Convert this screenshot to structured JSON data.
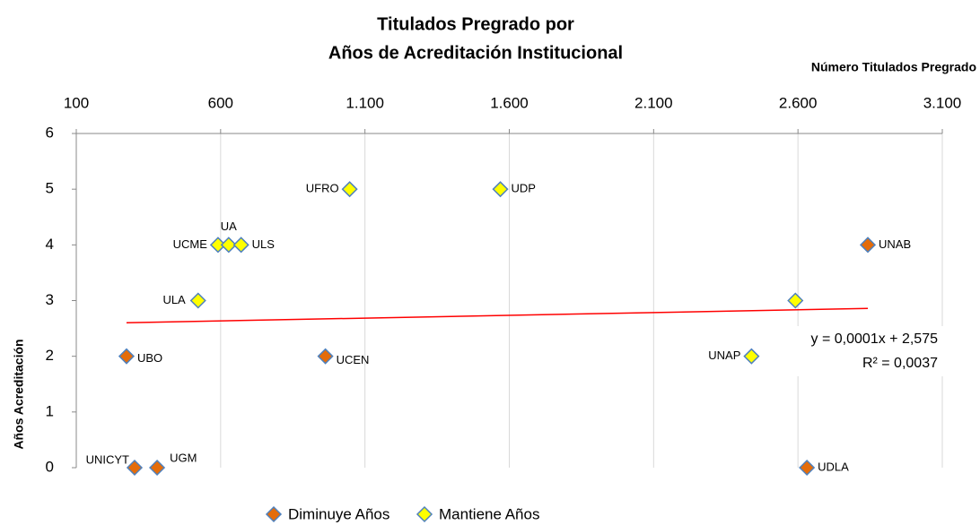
{
  "chart_data": {
    "type": "scatter",
    "title": "Titulados Pregrado por",
    "subtitle": "Años de Acreditación Institucional",
    "x_label": "Número Titulados Pregrado",
    "y_label": "Años Acreditación",
    "xlim": [
      100,
      3100
    ],
    "xticks": [
      100,
      600,
      {
        "value": 1100,
        "label": "1.100"
      },
      {
        "value": 1600,
        "label": "1.600"
      },
      {
        "value": 2100,
        "label": "2.100"
      },
      {
        "value": 2600,
        "label": "2.600"
      },
      {
        "value": 3100,
        "label": "3.100"
      }
    ],
    "ylim": [
      0,
      6
    ],
    "yticks": [
      0,
      1,
      2,
      3,
      4,
      5,
      6
    ],
    "grid": true,
    "legend": "bottom",
    "series": [
      {
        "name": "Diminuye Años",
        "color": "#e46c0a",
        "x": [
          2842,
          274,
          963,
          302,
          380,
          2631
        ],
        "values": [
          4,
          2,
          2,
          0,
          0,
          0
        ],
        "labels": [
          "UNAB",
          "UBO",
          "UCEN",
          "UNICYT",
          "UGM",
          "UDLA"
        ]
      },
      {
        "name": "Mantiene Años",
        "color": "#ffff00",
        "x": [
          1047,
          1569,
          591,
          628,
          671,
          522,
          2591,
          2439
        ],
        "values": [
          5,
          5,
          4,
          4,
          4,
          3,
          3,
          2
        ],
        "labels": [
          "UFRO",
          "UDP",
          "UCME",
          "UA",
          "ULS",
          "ULA",
          null,
          "UNAP"
        ]
      }
    ],
    "trendline": {
      "slope": 0.0001,
      "intercept": 2.575,
      "color": "#ff0000",
      "label": "y = 0,0001x + 2,575",
      "r2_label": "R² = 0,0037"
    }
  }
}
